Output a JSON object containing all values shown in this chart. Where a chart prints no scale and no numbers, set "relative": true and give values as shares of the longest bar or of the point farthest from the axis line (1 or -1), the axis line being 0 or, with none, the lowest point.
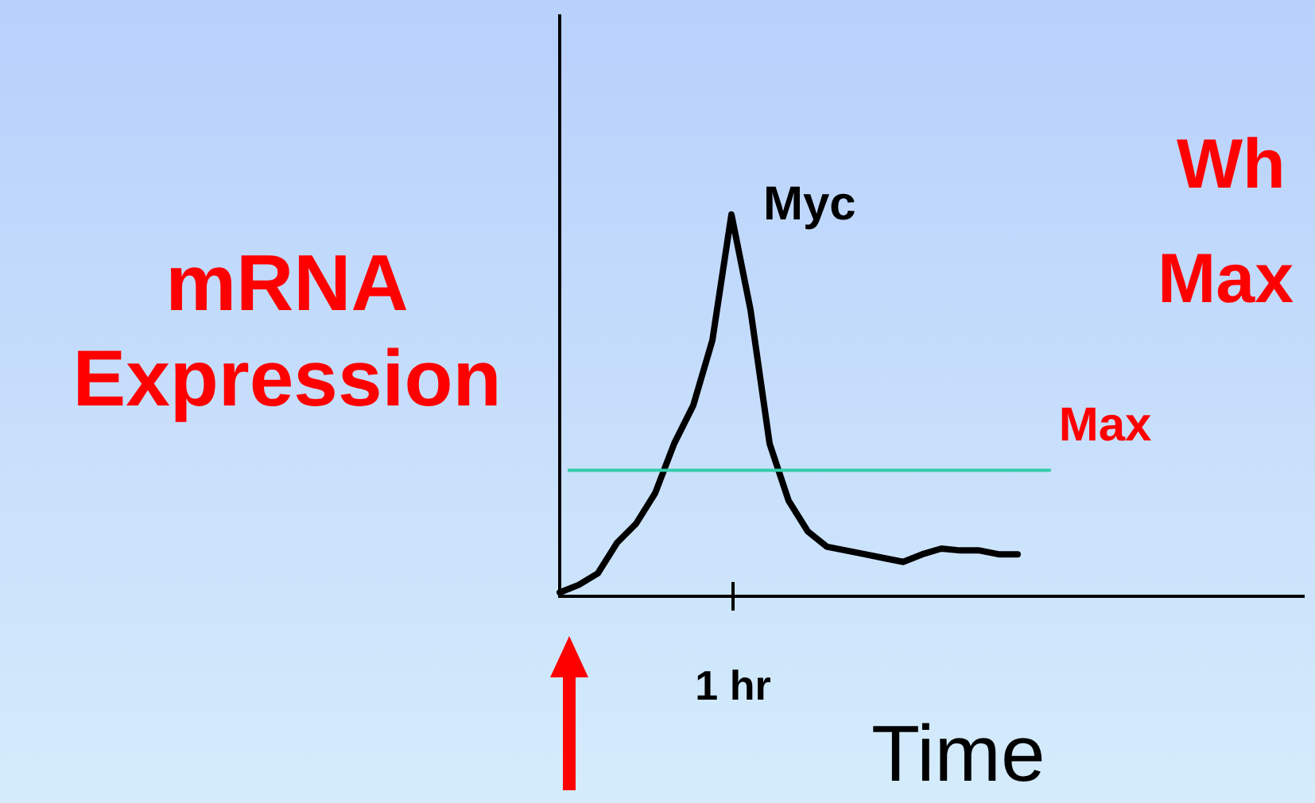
{
  "chart_data": {
    "type": "line",
    "relative": true,
    "ylabel": "mRNA Expression",
    "xlabel": "Time",
    "categories": [
      null,
      null,
      null,
      null,
      null,
      null,
      null,
      null,
      null,
      null,
      null,
      null,
      null,
      null,
      null,
      null,
      null,
      null,
      null,
      null,
      null,
      null,
      null,
      null,
      null,
      null,
      null,
      null,
      null,
      null,
      null,
      null,
      null,
      null,
      null,
      null,
      null,
      null,
      null,
      null
    ],
    "series": [
      {
        "name": "Myc",
        "color": "#000000",
        "values": [
          0.01,
          0.03,
          0.06,
          0.14,
          0.19,
          0.27,
          0.4,
          0.5,
          0.67,
          1,
          0.75,
          0.4,
          0.25,
          0.17,
          0.13,
          0.12,
          0.11,
          0.1,
          0.09,
          0.11,
          0.125,
          0.12,
          0.12,
          0.11,
          0.11,
          null,
          null,
          null,
          null,
          null,
          null,
          null,
          null,
          null,
          null,
          null,
          null,
          null,
          null,
          null
        ]
      }
    ],
    "ref_lines": [
      {
        "axis": "y",
        "value": 0.33,
        "label": "Max",
        "color": "#33ccaa"
      }
    ],
    "annotations": [
      "Wh",
      "Max",
      "1 hr"
    ],
    "legend": false,
    "grid": false,
    "marker": "none",
    "line_style": "solid"
  }
}
